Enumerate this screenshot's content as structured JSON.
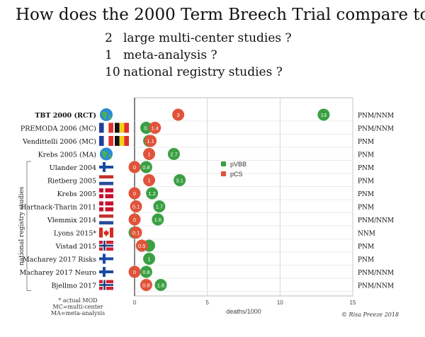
{
  "title": "How does the 2000 Term Breech Trial compare to...",
  "subtitles": [
    {
      "n": "2",
      "text": "large multi-center studies ?"
    },
    {
      "n": "1",
      "text": "meta-analysis ?"
    },
    {
      "n": "10",
      "text": "national registry studies ?"
    }
  ],
  "group_label": "national registry studies",
  "footnotes": [
    "* actual MOD",
    "MC=multi-center",
    "MA=meta-analysis"
  ],
  "copyright": "© Risa Preeze 2018",
  "colors": {
    "pVBB": "#3aa043",
    "pCS": "#e0533a"
  },
  "chart_data": {
    "type": "scatter",
    "xlabel": "deaths/1000",
    "xlim": [
      0,
      15
    ],
    "xticks": [
      0,
      5,
      10,
      15
    ],
    "legend": {
      "placement": "center",
      "entries": [
        "pVBB",
        "pCS"
      ]
    },
    "grid": true,
    "studies": [
      {
        "name": "TBT 2000 (RCT)",
        "bold": true,
        "flags": [
          "globe-icon"
        ],
        "measure": "PNM/NNM",
        "pVBB": 13,
        "pCS": 3
      },
      {
        "name": "PREMODA 2006 (MC)",
        "flags": [
          "flag-france-icon",
          "flag-belgium-icon"
        ],
        "measure": "PNM/NNM",
        "pVBB": 0.8,
        "pCS": 1.4,
        "pVBB_label": "0."
      },
      {
        "name": "Vendittelli 2006 (MC)",
        "flags": [
          "flag-france-icon",
          "flag-belgium-icon"
        ],
        "measure": "PNM",
        "pVBB": 1.0,
        "pCS": 1.1,
        "pVBB_label": "1"
      },
      {
        "name": "Krebs 2005 (MA)",
        "flags": [
          "globe-icon"
        ],
        "measure": "PNM",
        "pVBB": 2.7,
        "pCS": 1.0
      },
      {
        "name": "Ulander 2004",
        "flags": [
          "flag-finland-icon"
        ],
        "measure": "PNM",
        "pVBB": 0.8,
        "pCS": 0
      },
      {
        "name": "Rietberg 2005",
        "flags": [
          "flag-netherlands-icon"
        ],
        "measure": "PNM",
        "pVBB": 3.1,
        "pCS": 1.0
      },
      {
        "name": "Krebs 2005",
        "flags": [
          "flag-denmark-icon"
        ],
        "measure": "PNM",
        "pVBB": 1.2,
        "pCS": 0
      },
      {
        "name": "Hartnack-Tharin 2011",
        "flags": [
          "flag-denmark-icon"
        ],
        "measure": "PNM",
        "pVBB": 1.7,
        "pCS": 0.1
      },
      {
        "name": "Vlemmix 2014",
        "flags": [
          "flag-netherlands-icon"
        ],
        "measure": "PNM/NNM",
        "pVBB": 1.6,
        "pCS": 0
      },
      {
        "name": "Lyons 2015*",
        "flags": [
          "flag-canada-icon"
        ],
        "measure": "NNM",
        "pVBB": 0,
        "pCS": 0.1,
        "pVBB_label": ""
      },
      {
        "name": "Vistad 2015",
        "flags": [
          "flag-norway-icon"
        ],
        "measure": "PNM",
        "pVBB": 1.0,
        "pCS": 0.5,
        "pVBB_label": ""
      },
      {
        "name": "Macharey 2017 Risks",
        "flags": [
          "flag-finland-icon"
        ],
        "measure": "PNM",
        "pVBB": 1.0,
        "pCS": null
      },
      {
        "name": "Macharey 2017 Neuro",
        "flags": [
          "flag-finland-icon"
        ],
        "measure": "PNM/NNM",
        "pVBB": 0.8,
        "pCS": 0
      },
      {
        "name": "Bjellmo 2017",
        "flags": [
          "flag-norway-icon"
        ],
        "measure": "PNM/NNM",
        "pVBB": 1.8,
        "pCS": 0.8
      }
    ]
  }
}
